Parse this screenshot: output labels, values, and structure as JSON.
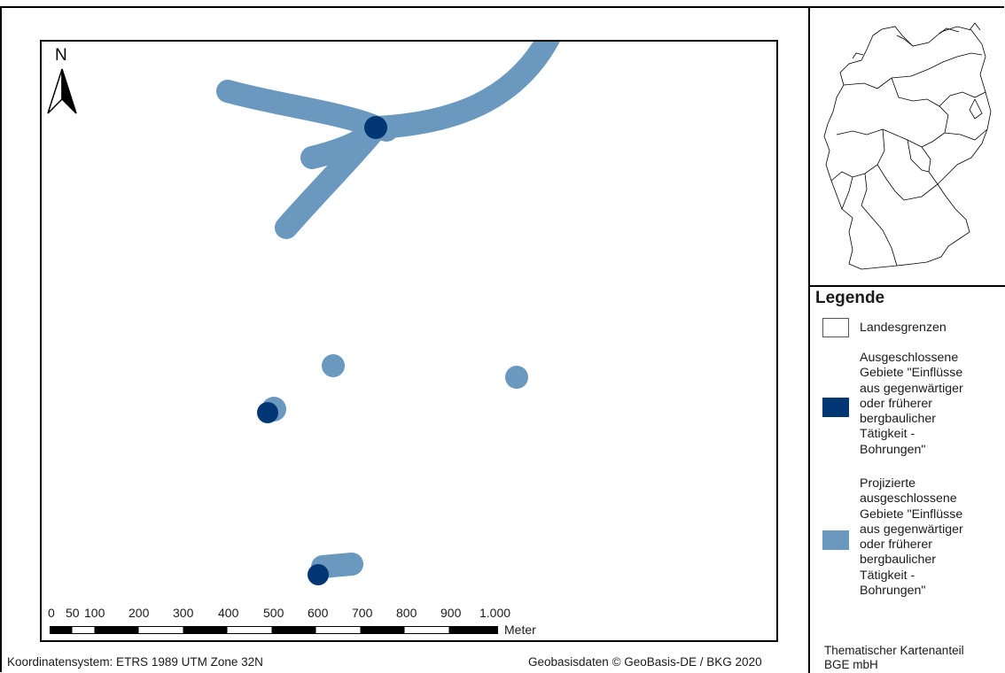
{
  "north_letter": "N",
  "legend": {
    "title": "Legende",
    "items": [
      {
        "label": "Landesgrenzen"
      },
      {
        "label": "Ausgeschlossene\nGebiete \"Einflüsse\naus gegenwärtiger\noder früherer\nbergbaulicher\nTätigkeit -\nBohrungen\"",
        "color": "#003673"
      },
      {
        "label": "Projizierte\nausgeschlossene\nGebiete \"Einflüsse\naus gegenwärtiger\noder früherer\nbergbaulicher\nTätigkeit -\nBohrungen\"",
        "color": "#6a98be"
      }
    ]
  },
  "scale": {
    "labels": [
      "0",
      "50",
      "100",
      "200",
      "300",
      "400",
      "500",
      "600",
      "700",
      "800",
      "900",
      "1.000"
    ],
    "unit": "Meter"
  },
  "footer": {
    "crs": "Koordinatensystem: ETRS 1989 UTM Zone 32N",
    "source": "Geobasisdaten © GeoBasis-DE / BKG 2020",
    "thematic_line1": "Thematischer Kartenanteil",
    "thematic_line2": "BGE mbH"
  },
  "colors": {
    "excluded": "#003673",
    "projected": "#6a98be",
    "border": "#000000"
  }
}
